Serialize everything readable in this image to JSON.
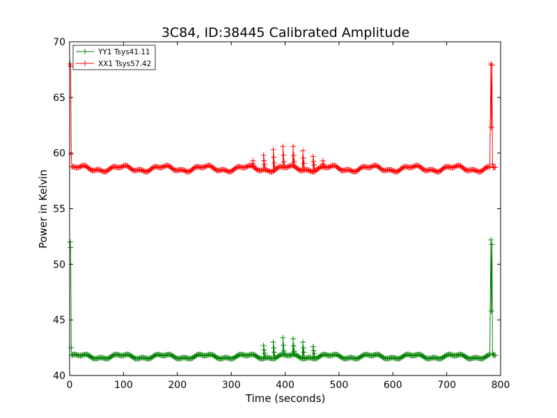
{
  "chart_data": {
    "type": "line",
    "title": "3C84, ID:38445 Calibrated Amplitude",
    "xlabel": "Time (seconds)",
    "ylabel": "Power in Kelvin",
    "xlim": [
      0,
      800
    ],
    "ylim": [
      40,
      70
    ],
    "xticks": [
      0,
      100,
      200,
      300,
      400,
      500,
      600,
      700,
      800
    ],
    "yticks": [
      40,
      45,
      50,
      55,
      60,
      65,
      70
    ],
    "grid": false,
    "legend_position": "top-left",
    "marker": "+",
    "series": [
      {
        "name": "YY1 Tsys41.11",
        "color": "#008000",
        "baseline": 41.7,
        "amplitude": 0.18,
        "spikes": [
          {
            "x": 1,
            "y": 52.0
          },
          {
            "x": 2,
            "y": 51.5
          },
          {
            "x": 3,
            "y": 42.5
          },
          {
            "x": 782,
            "y": 52.2
          },
          {
            "x": 783,
            "y": 45.8
          },
          {
            "x": 784,
            "y": 51.8
          },
          {
            "x": 785,
            "y": 42.0
          }
        ],
        "bumps": [
          {
            "x": 360,
            "y": 42.7
          },
          {
            "x": 378,
            "y": 43.0
          },
          {
            "x": 396,
            "y": 43.4
          },
          {
            "x": 415,
            "y": 43.3
          },
          {
            "x": 433,
            "y": 43.0
          },
          {
            "x": 452,
            "y": 42.6
          }
        ]
      },
      {
        "name": "XX1 Tsys57.42",
        "color": "#ff0000",
        "baseline": 58.6,
        "amplitude": 0.22,
        "spikes": [
          {
            "x": 1,
            "y": 68.0
          },
          {
            "x": 2,
            "y": 67.8
          },
          {
            "x": 3,
            "y": 59.9
          },
          {
            "x": 782,
            "y": 68.0
          },
          {
            "x": 783,
            "y": 62.3
          },
          {
            "x": 784,
            "y": 67.9
          },
          {
            "x": 785,
            "y": 59.0
          }
        ],
        "bumps": [
          {
            "x": 340,
            "y": 59.3
          },
          {
            "x": 360,
            "y": 59.8
          },
          {
            "x": 378,
            "y": 60.3
          },
          {
            "x": 396,
            "y": 60.6
          },
          {
            "x": 415,
            "y": 60.6
          },
          {
            "x": 433,
            "y": 60.2
          },
          {
            "x": 452,
            "y": 59.7
          },
          {
            "x": 470,
            "y": 59.3
          }
        ]
      }
    ]
  }
}
